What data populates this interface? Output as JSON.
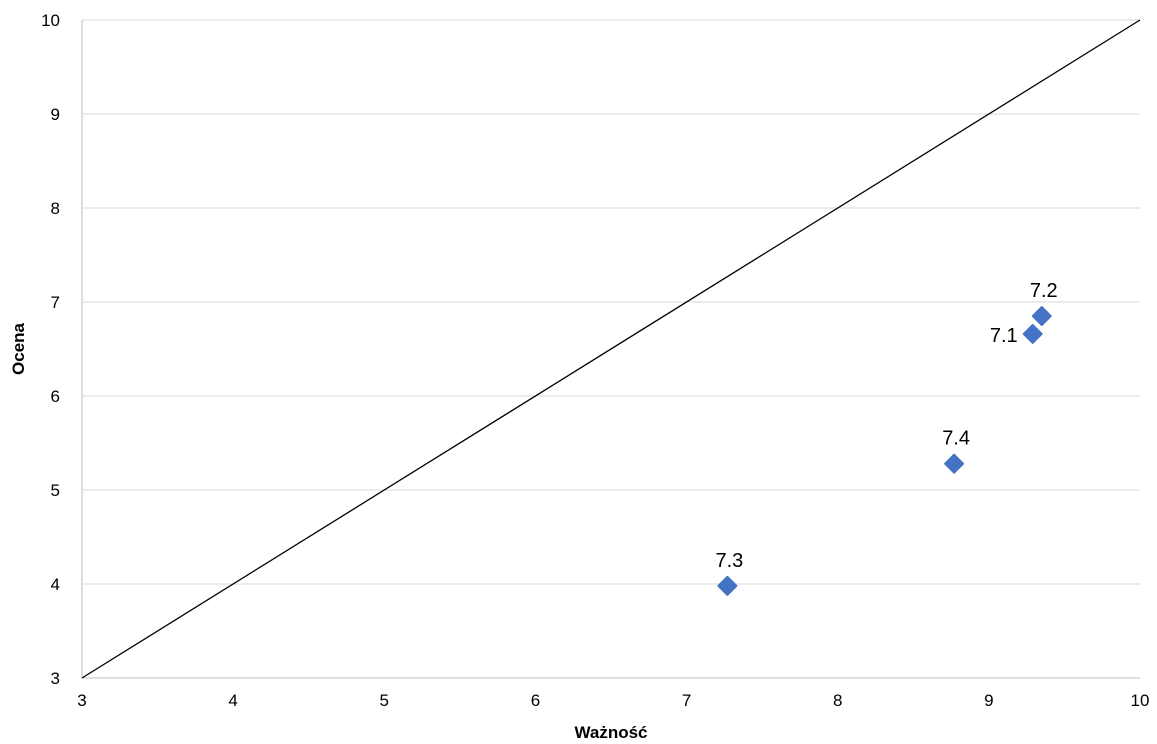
{
  "chart_data": {
    "type": "scatter",
    "xlabel": "Ważność",
    "ylabel": "Ocena",
    "xlim": [
      3,
      10
    ],
    "ylim": [
      3,
      10
    ],
    "xticks": [
      "3",
      "4",
      "5",
      "6",
      "7",
      "8",
      "9",
      "10"
    ],
    "yticks": [
      "3",
      "4",
      "5",
      "6",
      "7",
      "8",
      "9",
      "10"
    ],
    "grid": "horizontal",
    "marker_color": "#4472C4",
    "reference_line": {
      "from": [
        3,
        3
      ],
      "to": [
        10,
        10
      ]
    },
    "points": [
      {
        "label": "7.1",
        "x": 9.29,
        "y": 6.66,
        "label_position": "left"
      },
      {
        "label": "7.2",
        "x": 9.35,
        "y": 6.85,
        "label_position": "above"
      },
      {
        "label": "7.3",
        "x": 7.27,
        "y": 3.98,
        "label_position": "above"
      },
      {
        "label": "7.4",
        "x": 8.77,
        "y": 5.28,
        "label_position": "above"
      }
    ]
  }
}
